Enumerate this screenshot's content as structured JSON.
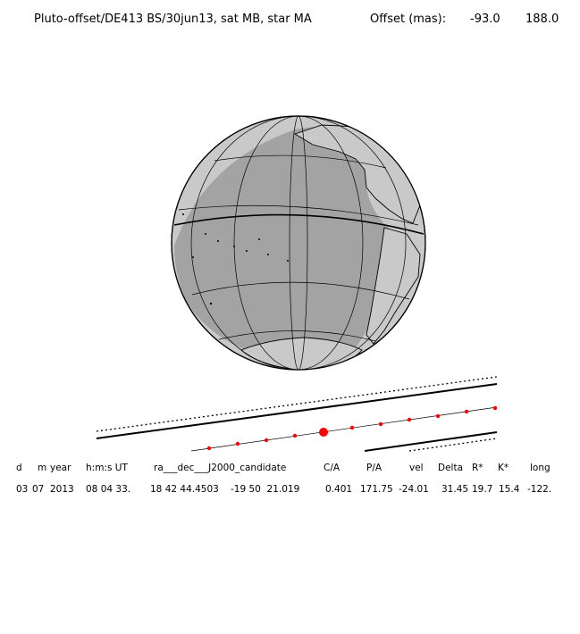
{
  "title": {
    "main": "Pluto-offset/DE413 BS/30jun13, sat MB, star MA",
    "offset_label": "Offset (mas):",
    "offset_ra": "-93.0",
    "offset_dec": "188.0"
  },
  "table": {
    "headers": [
      "d",
      "m",
      "year",
      "h:m:s UT",
      "ra___dec___J2000_candidate",
      "C/A",
      "P/A",
      "vel",
      "Delta",
      "R*",
      "K*",
      "long"
    ],
    "values": [
      "03",
      "07",
      "2013",
      "08 04 33.",
      "18 42 44.4503",
      "-19 50  21.019",
      "0.401",
      "171.75",
      "-24.01",
      "31.45",
      "19.7",
      "15.4",
      "-122."
    ]
  },
  "colors": {
    "globe_land": "#c8c8c8",
    "globe_ocean": "#a0a0a0",
    "track_marker": "#ff0000",
    "line": "#000000"
  }
}
